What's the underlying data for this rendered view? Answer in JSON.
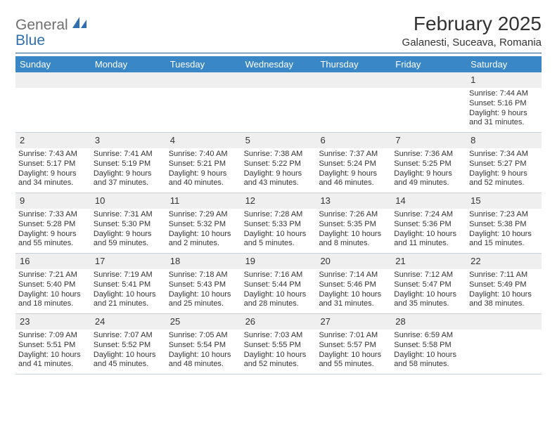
{
  "logo": {
    "text1": "General",
    "text2": "Blue"
  },
  "title": "February 2025",
  "location": "Galanesti, Suceava, Romania",
  "colors": {
    "header_bg": "#3a87c8",
    "header_text": "#ffffff",
    "daynum_bg": "#efefef",
    "rule": "#1f5d9c",
    "logo_gray": "#6f6f6f",
    "logo_blue": "#2f6fb0"
  },
  "weekdays": [
    "Sunday",
    "Monday",
    "Tuesday",
    "Wednesday",
    "Thursday",
    "Friday",
    "Saturday"
  ],
  "weeks": [
    [
      {
        "n": "",
        "sr": "",
        "ss": "",
        "dl": ""
      },
      {
        "n": "",
        "sr": "",
        "ss": "",
        "dl": ""
      },
      {
        "n": "",
        "sr": "",
        "ss": "",
        "dl": ""
      },
      {
        "n": "",
        "sr": "",
        "ss": "",
        "dl": ""
      },
      {
        "n": "",
        "sr": "",
        "ss": "",
        "dl": ""
      },
      {
        "n": "",
        "sr": "",
        "ss": "",
        "dl": ""
      },
      {
        "n": "1",
        "sr": "Sunrise: 7:44 AM",
        "ss": "Sunset: 5:16 PM",
        "dl": "Daylight: 9 hours and 31 minutes."
      }
    ],
    [
      {
        "n": "2",
        "sr": "Sunrise: 7:43 AM",
        "ss": "Sunset: 5:17 PM",
        "dl": "Daylight: 9 hours and 34 minutes."
      },
      {
        "n": "3",
        "sr": "Sunrise: 7:41 AM",
        "ss": "Sunset: 5:19 PM",
        "dl": "Daylight: 9 hours and 37 minutes."
      },
      {
        "n": "4",
        "sr": "Sunrise: 7:40 AM",
        "ss": "Sunset: 5:21 PM",
        "dl": "Daylight: 9 hours and 40 minutes."
      },
      {
        "n": "5",
        "sr": "Sunrise: 7:38 AM",
        "ss": "Sunset: 5:22 PM",
        "dl": "Daylight: 9 hours and 43 minutes."
      },
      {
        "n": "6",
        "sr": "Sunrise: 7:37 AM",
        "ss": "Sunset: 5:24 PM",
        "dl": "Daylight: 9 hours and 46 minutes."
      },
      {
        "n": "7",
        "sr": "Sunrise: 7:36 AM",
        "ss": "Sunset: 5:25 PM",
        "dl": "Daylight: 9 hours and 49 minutes."
      },
      {
        "n": "8",
        "sr": "Sunrise: 7:34 AM",
        "ss": "Sunset: 5:27 PM",
        "dl": "Daylight: 9 hours and 52 minutes."
      }
    ],
    [
      {
        "n": "9",
        "sr": "Sunrise: 7:33 AM",
        "ss": "Sunset: 5:28 PM",
        "dl": "Daylight: 9 hours and 55 minutes."
      },
      {
        "n": "10",
        "sr": "Sunrise: 7:31 AM",
        "ss": "Sunset: 5:30 PM",
        "dl": "Daylight: 9 hours and 59 minutes."
      },
      {
        "n": "11",
        "sr": "Sunrise: 7:29 AM",
        "ss": "Sunset: 5:32 PM",
        "dl": "Daylight: 10 hours and 2 minutes."
      },
      {
        "n": "12",
        "sr": "Sunrise: 7:28 AM",
        "ss": "Sunset: 5:33 PM",
        "dl": "Daylight: 10 hours and 5 minutes."
      },
      {
        "n": "13",
        "sr": "Sunrise: 7:26 AM",
        "ss": "Sunset: 5:35 PM",
        "dl": "Daylight: 10 hours and 8 minutes."
      },
      {
        "n": "14",
        "sr": "Sunrise: 7:24 AM",
        "ss": "Sunset: 5:36 PM",
        "dl": "Daylight: 10 hours and 11 minutes."
      },
      {
        "n": "15",
        "sr": "Sunrise: 7:23 AM",
        "ss": "Sunset: 5:38 PM",
        "dl": "Daylight: 10 hours and 15 minutes."
      }
    ],
    [
      {
        "n": "16",
        "sr": "Sunrise: 7:21 AM",
        "ss": "Sunset: 5:40 PM",
        "dl": "Daylight: 10 hours and 18 minutes."
      },
      {
        "n": "17",
        "sr": "Sunrise: 7:19 AM",
        "ss": "Sunset: 5:41 PM",
        "dl": "Daylight: 10 hours and 21 minutes."
      },
      {
        "n": "18",
        "sr": "Sunrise: 7:18 AM",
        "ss": "Sunset: 5:43 PM",
        "dl": "Daylight: 10 hours and 25 minutes."
      },
      {
        "n": "19",
        "sr": "Sunrise: 7:16 AM",
        "ss": "Sunset: 5:44 PM",
        "dl": "Daylight: 10 hours and 28 minutes."
      },
      {
        "n": "20",
        "sr": "Sunrise: 7:14 AM",
        "ss": "Sunset: 5:46 PM",
        "dl": "Daylight: 10 hours and 31 minutes."
      },
      {
        "n": "21",
        "sr": "Sunrise: 7:12 AM",
        "ss": "Sunset: 5:47 PM",
        "dl": "Daylight: 10 hours and 35 minutes."
      },
      {
        "n": "22",
        "sr": "Sunrise: 7:11 AM",
        "ss": "Sunset: 5:49 PM",
        "dl": "Daylight: 10 hours and 38 minutes."
      }
    ],
    [
      {
        "n": "23",
        "sr": "Sunrise: 7:09 AM",
        "ss": "Sunset: 5:51 PM",
        "dl": "Daylight: 10 hours and 41 minutes."
      },
      {
        "n": "24",
        "sr": "Sunrise: 7:07 AM",
        "ss": "Sunset: 5:52 PM",
        "dl": "Daylight: 10 hours and 45 minutes."
      },
      {
        "n": "25",
        "sr": "Sunrise: 7:05 AM",
        "ss": "Sunset: 5:54 PM",
        "dl": "Daylight: 10 hours and 48 minutes."
      },
      {
        "n": "26",
        "sr": "Sunrise: 7:03 AM",
        "ss": "Sunset: 5:55 PM",
        "dl": "Daylight: 10 hours and 52 minutes."
      },
      {
        "n": "27",
        "sr": "Sunrise: 7:01 AM",
        "ss": "Sunset: 5:57 PM",
        "dl": "Daylight: 10 hours and 55 minutes."
      },
      {
        "n": "28",
        "sr": "Sunrise: 6:59 AM",
        "ss": "Sunset: 5:58 PM",
        "dl": "Daylight: 10 hours and 58 minutes."
      },
      {
        "n": "",
        "sr": "",
        "ss": "",
        "dl": ""
      }
    ]
  ]
}
